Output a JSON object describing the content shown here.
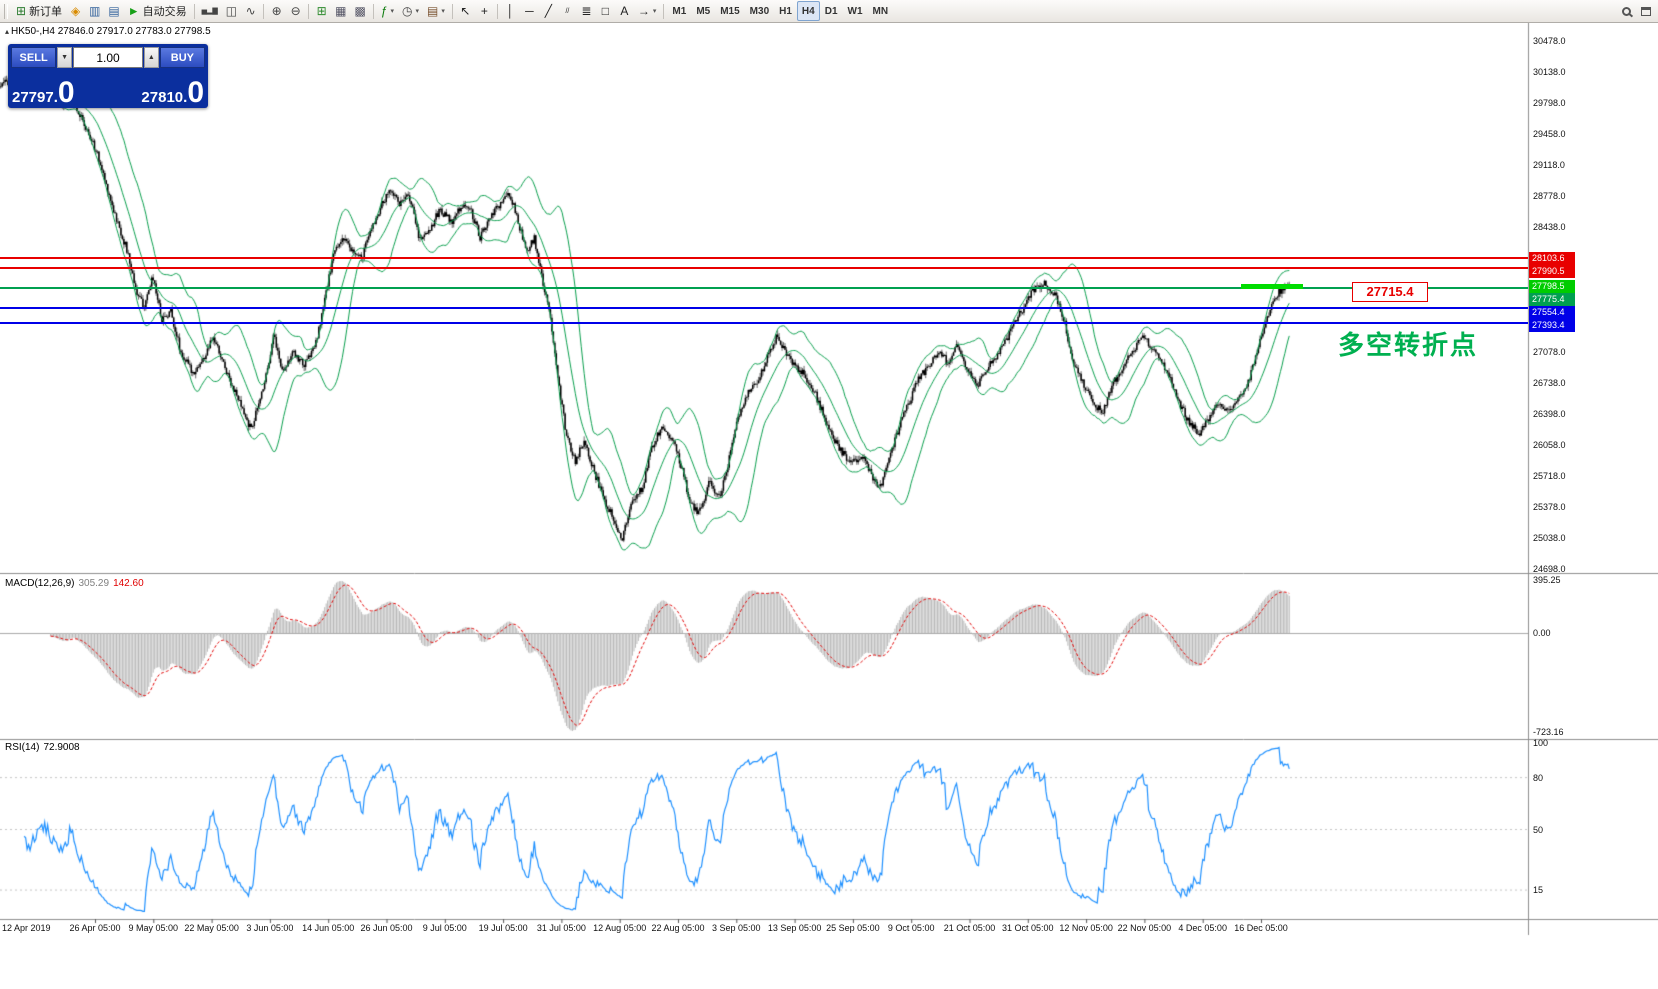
{
  "toolbar": {
    "items": [
      {
        "name": "new-order",
        "icon": "new-order",
        "label": "新订单"
      },
      {
        "name": "metaeditor",
        "icon": "metaeditor"
      },
      {
        "name": "market-watch",
        "icon": "market-watch"
      },
      {
        "name": "data-window",
        "icon": "data-window"
      },
      {
        "name": "autotrading",
        "icon": "autotrading",
        "label": "自动交易"
      },
      {
        "sep": true
      },
      {
        "name": "bar-chart",
        "icon": "bar-chart"
      },
      {
        "name": "candlestick-chart",
        "icon": "candlestick-chart"
      },
      {
        "name": "line-chart",
        "icon": "line-chart"
      },
      {
        "sep": true
      },
      {
        "name": "zoom-in",
        "icon": "zoom-in"
      },
      {
        "name": "zoom-out",
        "icon": "zoom-out"
      },
      {
        "sep": true
      },
      {
        "name": "tile-windows",
        "icon": "tile-windows"
      },
      {
        "name": "auto-arrange",
        "icon": "auto-arrange"
      },
      {
        "name": "track-chart",
        "icon": "track-chart"
      },
      {
        "sep": true
      },
      {
        "name": "indicators",
        "icon": "indicators",
        "caret": true
      },
      {
        "name": "periods",
        "icon": "periods",
        "caret": true
      },
      {
        "name": "templates",
        "icon": "templates",
        "caret": true
      },
      {
        "sep": true
      },
      {
        "name": "cursor",
        "icon": "cursor"
      },
      {
        "name": "crosshair",
        "icon": "crosshair"
      },
      {
        "sep": true
      },
      {
        "name": "vertical-line",
        "icon": "vertical-line"
      },
      {
        "name": "horizontal-line",
        "icon": "horizontal-line"
      },
      {
        "name": "trendline",
        "icon": "trendline"
      },
      {
        "name": "equidistant-channel",
        "icon": "channel"
      },
      {
        "name": "fibonacci-retracement",
        "icon": "fibonacci"
      },
      {
        "name": "shapes",
        "icon": "shapes"
      },
      {
        "name": "text",
        "icon": "text"
      },
      {
        "name": "arrow-objects",
        "icon": "arrows",
        "caret": true
      },
      {
        "sep": true
      }
    ],
    "timeframes": [
      "M1",
      "M5",
      "M15",
      "M30",
      "H1",
      "H4",
      "D1",
      "W1",
      "MN"
    ],
    "active_timeframe": "H4",
    "right_items": [
      {
        "name": "search",
        "icon": "search"
      },
      {
        "name": "chart-window",
        "icon": "window"
      }
    ]
  },
  "chart": {
    "header": "HK50-,H4 27846.0 27917.0 27783.0 27798.5"
  },
  "order_panel": {
    "sell_label": "SELL",
    "buy_label": "BUY",
    "volume": "1.00",
    "sell_price": "27797.",
    "sell_price_big": "0",
    "buy_price": "27810.",
    "buy_price_big": "0"
  },
  "annotations": {
    "price_callout": {
      "text": "27715.4",
      "price": 27715.4,
      "color": "#e80000"
    },
    "note": {
      "text": "多空转折点",
      "color": "#00b050"
    }
  },
  "indicators": {
    "macd": {
      "name": "MACD(12,26,9)",
      "value_main": "305.29",
      "value_signal": "142.60",
      "scale_labels": [
        "395.25",
        "0.00",
        "-723.16"
      ],
      "histogram_color": "#b8b8b8",
      "signal_color": "#e00000"
    },
    "rsi": {
      "name": "RSI(14)",
      "value": "72.9008",
      "scale_labels": [
        "100",
        "80",
        "50",
        "15"
      ],
      "levels": [
        80,
        50,
        15
      ],
      "color": "#1e90ff"
    }
  },
  "hlines": [
    {
      "price": 28103.6,
      "label": "28103.6",
      "color": "#e80000"
    },
    {
      "price": 27990.5,
      "label": "27990.5",
      "color": "#e80000"
    },
    {
      "price": 27775.4,
      "label": "27775.4",
      "color": "#00a050"
    },
    {
      "price": 27554.4,
      "label": "27554.4",
      "color": "#0000e8"
    },
    {
      "price": 27393.4,
      "label": "27393.4",
      "color": "#0000e8"
    }
  ],
  "current_price": {
    "price": 27798.5,
    "label": "27798.5",
    "color": "#00cc00"
  },
  "highlight_segment": {
    "price": 27798.5,
    "color": "#00dd00"
  },
  "chart_data": {
    "type": "candlestick",
    "symbol": "HK50-",
    "period": "H4",
    "last_ohlc": {
      "open": 27846.0,
      "high": 27917.0,
      "low": 27783.0,
      "close": 27798.5
    },
    "bid": 27797.0,
    "ask": 27810.0,
    "y_axis": {
      "min": 24698.0,
      "max": 30478.0,
      "tick_step": 340.0
    },
    "x_labels": [
      "12 Apr 2019",
      "26 Apr 05:00",
      "9 May 05:00",
      "22 May 05:00",
      "3 Jun 05:00",
      "14 Jun 05:00",
      "26 Jun 05:00",
      "9 Jul 05:00",
      "19 Jul 05:00",
      "31 Jul 05:00",
      "12 Aug 05:00",
      "22 Aug 05:00",
      "3 Sep 05:00",
      "13 Sep 05:00",
      "25 Sep 05:00",
      "9 Oct 05:00",
      "21 Oct 05:00",
      "31 Oct 05:00",
      "12 Nov 05:00",
      "22 Nov 05:00",
      "4 Dec 05:00",
      "16 Dec 05:00"
    ],
    "key_levels": [
      28103.6,
      27990.5,
      27798.5,
      27775.4,
      27715.4,
      27554.4,
      27393.4
    ],
    "overlays": {
      "bollinger_bands": {
        "period": 20,
        "deviation": 2,
        "color": "#089e4c"
      }
    },
    "candle_color": "#000000",
    "price_path": [
      [
        0.0,
        29980
      ],
      [
        0.01,
        30080
      ],
      [
        0.022,
        29850
      ],
      [
        0.034,
        29960
      ],
      [
        0.045,
        29780
      ],
      [
        0.056,
        29850
      ],
      [
        0.065,
        29550
      ],
      [
        0.074,
        29280
      ],
      [
        0.082,
        28900
      ],
      [
        0.09,
        28520
      ],
      [
        0.098,
        28180
      ],
      [
        0.106,
        27700
      ],
      [
        0.112,
        27560
      ],
      [
        0.118,
        27920
      ],
      [
        0.125,
        27430
      ],
      [
        0.132,
        27520
      ],
      [
        0.14,
        27060
      ],
      [
        0.149,
        26850
      ],
      [
        0.157,
        26980
      ],
      [
        0.165,
        27230
      ],
      [
        0.172,
        26980
      ],
      [
        0.18,
        26700
      ],
      [
        0.188,
        26420
      ],
      [
        0.194,
        26230
      ],
      [
        0.2,
        26480
      ],
      [
        0.207,
        26900
      ],
      [
        0.212,
        27280
      ],
      [
        0.218,
        26870
      ],
      [
        0.227,
        27060
      ],
      [
        0.236,
        26930
      ],
      [
        0.245,
        27180
      ],
      [
        0.252,
        27680
      ],
      [
        0.258,
        28130
      ],
      [
        0.265,
        28330
      ],
      [
        0.272,
        28180
      ],
      [
        0.28,
        28090
      ],
      [
        0.288,
        28440
      ],
      [
        0.296,
        28690
      ],
      [
        0.303,
        28860
      ],
      [
        0.31,
        28690
      ],
      [
        0.317,
        28790
      ],
      [
        0.325,
        28310
      ],
      [
        0.333,
        28420
      ],
      [
        0.341,
        28640
      ],
      [
        0.35,
        28480
      ],
      [
        0.358,
        28690
      ],
      [
        0.365,
        28620
      ],
      [
        0.372,
        28330
      ],
      [
        0.38,
        28540
      ],
      [
        0.388,
        28700
      ],
      [
        0.395,
        28810
      ],
      [
        0.402,
        28480
      ],
      [
        0.408,
        28140
      ],
      [
        0.414,
        28330
      ],
      [
        0.42,
        27880
      ],
      [
        0.427,
        27420
      ],
      [
        0.433,
        26740
      ],
      [
        0.439,
        26150
      ],
      [
        0.446,
        25880
      ],
      [
        0.453,
        26120
      ],
      [
        0.46,
        25790
      ],
      [
        0.468,
        25470
      ],
      [
        0.475,
        25280
      ],
      [
        0.482,
        25020
      ],
      [
        0.49,
        25430
      ],
      [
        0.498,
        25590
      ],
      [
        0.505,
        26040
      ],
      [
        0.513,
        26240
      ],
      [
        0.521,
        26130
      ],
      [
        0.528,
        25830
      ],
      [
        0.535,
        25420
      ],
      [
        0.542,
        25310
      ],
      [
        0.55,
        25640
      ],
      [
        0.558,
        25480
      ],
      [
        0.565,
        25890
      ],
      [
        0.572,
        26340
      ],
      [
        0.58,
        26640
      ],
      [
        0.588,
        26760
      ],
      [
        0.595,
        27040
      ],
      [
        0.602,
        27240
      ],
      [
        0.609,
        27080
      ],
      [
        0.616,
        26930
      ],
      [
        0.623,
        26840
      ],
      [
        0.63,
        26690
      ],
      [
        0.638,
        26400
      ],
      [
        0.645,
        26140
      ],
      [
        0.652,
        25990
      ],
      [
        0.66,
        25840
      ],
      [
        0.668,
        25960
      ],
      [
        0.675,
        25740
      ],
      [
        0.682,
        25560
      ],
      [
        0.69,
        25910
      ],
      [
        0.698,
        26290
      ],
      [
        0.705,
        26520
      ],
      [
        0.712,
        26790
      ],
      [
        0.72,
        26910
      ],
      [
        0.728,
        27090
      ],
      [
        0.735,
        26950
      ],
      [
        0.742,
        27140
      ],
      [
        0.75,
        26890
      ],
      [
        0.758,
        26690
      ],
      [
        0.765,
        26890
      ],
      [
        0.772,
        27010
      ],
      [
        0.78,
        27190
      ],
      [
        0.788,
        27440
      ],
      [
        0.795,
        27590
      ],
      [
        0.802,
        27760
      ],
      [
        0.81,
        27820
      ],
      [
        0.818,
        27690
      ],
      [
        0.825,
        27440
      ],
      [
        0.832,
        26960
      ],
      [
        0.84,
        26740
      ],
      [
        0.848,
        26510
      ],
      [
        0.855,
        26400
      ],
      [
        0.862,
        26690
      ],
      [
        0.87,
        26900
      ],
      [
        0.878,
        27080
      ],
      [
        0.885,
        27240
      ],
      [
        0.892,
        27150
      ],
      [
        0.9,
        26990
      ],
      [
        0.908,
        26790
      ],
      [
        0.915,
        26510
      ],
      [
        0.922,
        26310
      ],
      [
        0.93,
        26190
      ],
      [
        0.938,
        26340
      ],
      [
        0.945,
        26500
      ],
      [
        0.952,
        26410
      ],
      [
        0.96,
        26540
      ],
      [
        0.968,
        26740
      ],
      [
        0.975,
        27090
      ],
      [
        0.982,
        27430
      ],
      [
        0.991,
        27720
      ],
      [
        1.0,
        27800
      ]
    ],
    "indicator_panels": [
      {
        "name": "MACD",
        "params": [
          12,
          26,
          9
        ],
        "scale": {
          "max": 395.25,
          "zero": 0.0,
          "min": -723.16
        }
      },
      {
        "name": "RSI",
        "params": [
          14
        ],
        "scale": {
          "max": 100,
          "levels": [
            80,
            50,
            15
          ]
        },
        "last_value": 72.9008
      }
    ]
  }
}
